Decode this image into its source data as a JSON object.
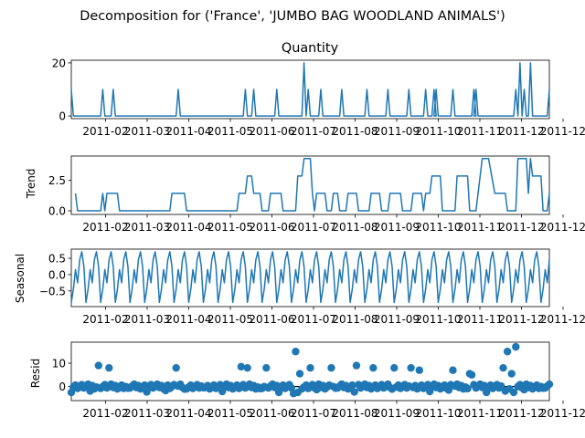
{
  "figure": {
    "suptitle": "Decomposition for ('France', 'JUMBO BAG WOODLAND ANIMALS')",
    "line_color": "#1f77b4",
    "zero_line_color": "#000000"
  },
  "chart_data": [
    {
      "type": "line",
      "panel": "observed",
      "title": "Quantity",
      "ylabel": "",
      "ylim": [
        -1,
        21
      ],
      "yticks": [
        {
          "v": 0,
          "label": "0"
        },
        {
          "v": 20,
          "label": "20"
        }
      ],
      "xticks": [
        "2011-02",
        "2011-03",
        "2011-04",
        "2011-05",
        "2011-06",
        "2011-07",
        "2011-08",
        "2011-09",
        "2011-10",
        "2011-11",
        "2011-12",
        "2011-12"
      ],
      "xlim": [
        0,
        228
      ],
      "spikes": [
        [
          0,
          10
        ],
        [
          15,
          10
        ],
        [
          20,
          10
        ],
        [
          51,
          10
        ],
        [
          83,
          10
        ],
        [
          87,
          10
        ],
        [
          98,
          10
        ],
        [
          111,
          20
        ],
        [
          113,
          10
        ],
        [
          119,
          10
        ],
        [
          129,
          10
        ],
        [
          141,
          10
        ],
        [
          151,
          10
        ],
        [
          161,
          10
        ],
        [
          169,
          10
        ],
        [
          173,
          10
        ],
        [
          174,
          10
        ],
        [
          182,
          10
        ],
        [
          192,
          10
        ],
        [
          193,
          10
        ],
        [
          212,
          10
        ],
        [
          214,
          20
        ],
        [
          216,
          10
        ],
        [
          219,
          20
        ],
        [
          228,
          10
        ]
      ]
    },
    {
      "type": "line",
      "panel": "trend",
      "title": "",
      "ylabel": "Trend",
      "ylim": [
        -0.3,
        4.5
      ],
      "yticks": [
        {
          "v": 0,
          "label": "0.0"
        },
        {
          "v": 2.5,
          "label": "2.5"
        }
      ],
      "xticks": [
        "2011-02",
        "2011-03",
        "2011-04",
        "2011-05",
        "2011-06",
        "2011-07",
        "2011-08",
        "2011-09",
        "2011-10",
        "2011-11",
        "2011-12",
        "2011-12"
      ],
      "xlim": [
        0,
        228
      ],
      "points": [
        [
          2,
          1.43
        ],
        [
          3,
          0
        ],
        [
          14,
          0
        ],
        [
          15,
          1.43
        ],
        [
          16,
          0
        ],
        [
          17,
          1.43
        ],
        [
          22,
          1.43
        ],
        [
          23,
          0
        ],
        [
          47,
          0
        ],
        [
          48,
          1.43
        ],
        [
          54,
          1.43
        ],
        [
          55,
          0
        ],
        [
          79,
          0
        ],
        [
          80,
          1.43
        ],
        [
          83,
          1.43
        ],
        [
          84,
          2.86
        ],
        [
          86,
          2.86
        ],
        [
          87,
          1.43
        ],
        [
          90,
          1.43
        ],
        [
          91,
          0
        ],
        [
          94,
          0
        ],
        [
          95,
          1.43
        ],
        [
          100,
          1.43
        ],
        [
          101,
          0
        ],
        [
          107,
          0
        ],
        [
          108,
          2.86
        ],
        [
          110,
          2.86
        ],
        [
          111,
          4.29
        ],
        [
          114,
          4.29
        ],
        [
          115,
          1.43
        ],
        [
          116,
          0
        ],
        [
          117,
          1.43
        ],
        [
          121,
          1.43
        ],
        [
          122,
          0
        ],
        [
          124,
          0
        ],
        [
          125,
          1.43
        ],
        [
          127,
          1.43
        ],
        [
          128,
          0
        ],
        [
          131,
          0
        ],
        [
          132,
          1.43
        ],
        [
          136,
          1.43
        ],
        [
          137,
          0
        ],
        [
          142,
          0
        ],
        [
          143,
          1.43
        ],
        [
          147,
          1.43
        ],
        [
          148,
          0
        ],
        [
          151,
          0
        ],
        [
          152,
          1.43
        ],
        [
          157,
          1.43
        ],
        [
          158,
          0
        ],
        [
          162,
          0
        ],
        [
          163,
          1.43
        ],
        [
          167,
          1.43
        ],
        [
          168,
          0
        ],
        [
          169,
          1.43
        ],
        [
          171,
          1.43
        ],
        [
          172,
          2.86
        ],
        [
          176,
          2.86
        ],
        [
          177,
          0
        ],
        [
          183,
          0
        ],
        [
          184,
          2.86
        ],
        [
          189,
          2.86
        ],
        [
          190,
          0
        ],
        [
          193,
          0
        ],
        [
          196,
          4.29
        ],
        [
          199,
          4.29
        ],
        [
          202,
          1.43
        ],
        [
          207,
          1.43
        ],
        [
          208,
          0
        ],
        [
          212,
          0
        ],
        [
          213,
          4.29
        ],
        [
          217,
          4.29
        ],
        [
          218,
          1.43
        ],
        [
          219,
          4.29
        ],
        [
          220,
          2.86
        ],
        [
          224,
          2.86
        ],
        [
          225,
          0
        ],
        [
          227,
          0
        ],
        [
          228,
          1.43
        ]
      ]
    },
    {
      "type": "line",
      "panel": "seasonal",
      "title": "",
      "ylabel": "Seasonal",
      "ylim": [
        -0.98,
        0.78
      ],
      "yticks": [
        {
          "v": 0.5,
          "label": "0.5"
        },
        {
          "v": 0,
          "label": "0.0"
        },
        {
          "v": -0.5,
          "label": "−0.5"
        }
      ],
      "xticks": [
        "2011-02",
        "2011-03",
        "2011-04",
        "2011-05",
        "2011-06",
        "2011-07",
        "2011-08",
        "2011-09",
        "2011-10",
        "2011-11",
        "2011-12",
        "2011-12"
      ],
      "xlim": [
        0,
        228
      ],
      "period": 7,
      "pattern": [
        -0.85,
        -0.45,
        0.15,
        -0.25,
        0.45,
        0.7,
        0.25
      ]
    },
    {
      "type": "scatter",
      "panel": "resid",
      "title": "",
      "ylabel": "Resid",
      "ylim": [
        -6,
        19
      ],
      "yticks": [
        {
          "v": 10,
          "label": "10"
        },
        {
          "v": 0,
          "label": "0"
        }
      ],
      "xticks": [
        "2011-02",
        "2011-03",
        "2011-04",
        "2011-05",
        "2011-06",
        "2011-07",
        "2011-08",
        "2011-09",
        "2011-10",
        "2011-11",
        "2011-12",
        "2011-12"
      ],
      "xlim": [
        0,
        228
      ],
      "highlights": [
        [
          13,
          9
        ],
        [
          18,
          8
        ],
        [
          50,
          8
        ],
        [
          81,
          8.5
        ],
        [
          84,
          8
        ],
        [
          93,
          8
        ],
        [
          106,
          -3
        ],
        [
          107,
          15
        ],
        [
          108,
          -2.5
        ],
        [
          109,
          5.5
        ],
        [
          114,
          8
        ],
        [
          124,
          8
        ],
        [
          136,
          9
        ],
        [
          144,
          8
        ],
        [
          154,
          8
        ],
        [
          162,
          8
        ],
        [
          166,
          7
        ],
        [
          182,
          7
        ],
        [
          190,
          5.5
        ],
        [
          191,
          5
        ],
        [
          206,
          8
        ],
        [
          208,
          15
        ],
        [
          210,
          5.5
        ],
        [
          211,
          -2.5
        ],
        [
          212,
          17
        ]
      ]
    }
  ]
}
